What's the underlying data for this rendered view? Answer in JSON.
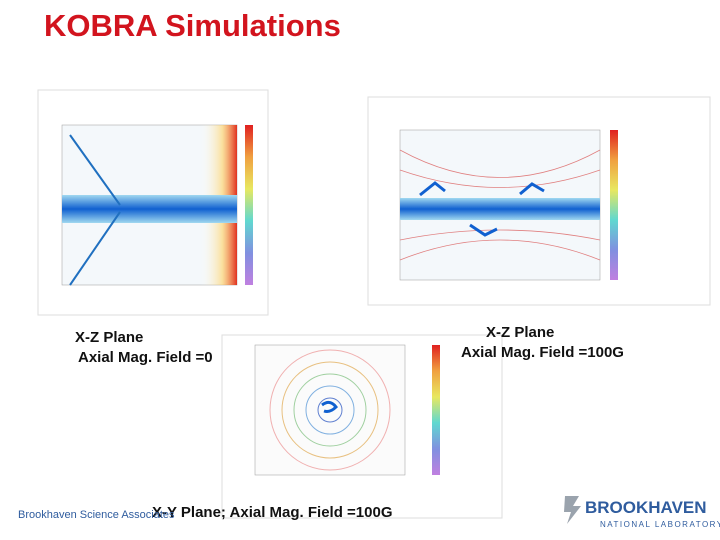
{
  "header": {
    "title": "KOBRA Simulations"
  },
  "captions": {
    "left": {
      "plane": "X-Z Plane",
      "field": "Axial Mag. Field =0"
    },
    "right": {
      "plane": "X-Z Plane",
      "field": "Axial Mag. Field =100G"
    },
    "bottom": "X-Y Plane; Axial Mag. Field =100G"
  },
  "footer": {
    "organization": "Brookhaven Science Associates",
    "logo_main": "BROOKHAVEN",
    "logo_sub": "NATIONAL LABORATORY"
  }
}
